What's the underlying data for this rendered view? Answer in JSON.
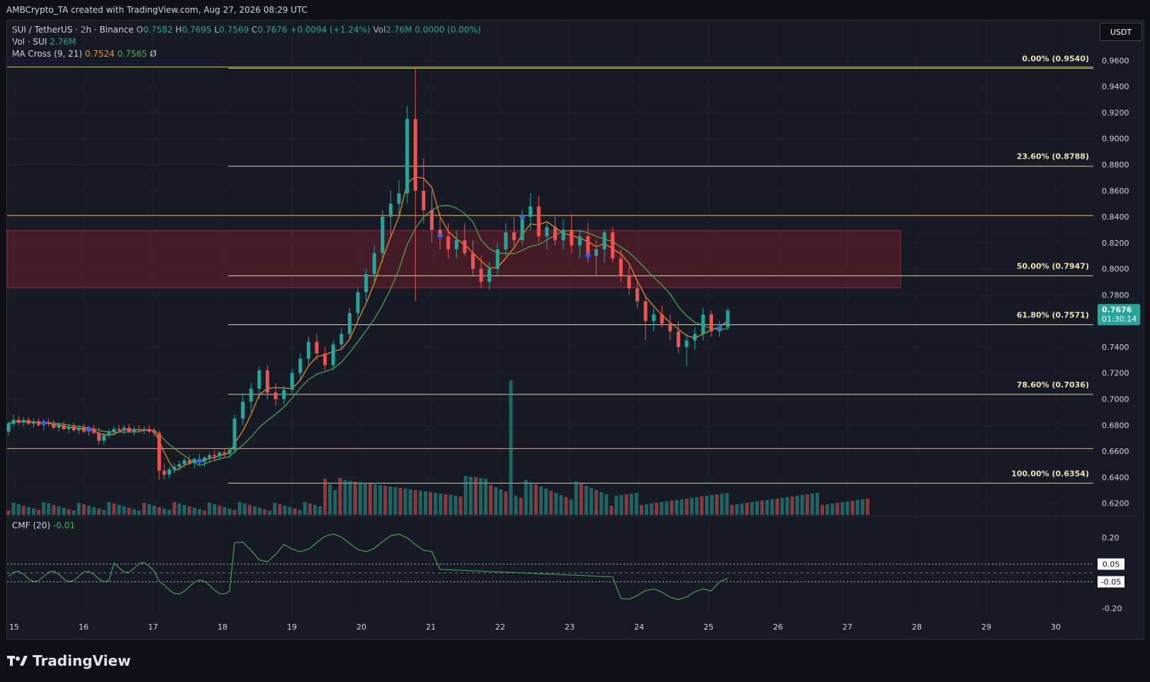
{
  "header": {
    "text": "AMBCrypto_TA created with TradingView.com, Aug 27, 2026 08:29 UTC"
  },
  "legend": {
    "symbol": "SUI / TetherUS · 2h · Binance",
    "o": "0.7582",
    "h": "0.7695",
    "l": "0.7569",
    "c": "0.7676",
    "change": "+0.0094 (+1.24%)",
    "vol_label": "Vol",
    "vol_value": "2.76M",
    "extra": "0.0000 (0.00%)",
    "vol_series": "Vol · SUI",
    "vol_series_value": "2.76M",
    "ma_label": "MA Cross (9, 21)",
    "ma_fast": "0.7524",
    "ma_slow": "0.7565",
    "ma_symbol": "Ø"
  },
  "cmf_legend": {
    "label": "CMF (20)",
    "value": "-0.01"
  },
  "currency_button": "USDT",
  "price_tag": {
    "price": "0.7676",
    "timer": "01:30:14"
  },
  "footer": {
    "brand": "TradingView"
  },
  "colors": {
    "up": "#26a69a",
    "down": "#ef5350",
    "ma_fast": "#f7931a",
    "ma_slow": "#4caf50",
    "fib": "#d4cfa8",
    "level": "#f0b24a",
    "zone": "#6b1f2a",
    "cmf": "#4caf50"
  },
  "chart_data": {
    "type": "candlestick",
    "price_axis": {
      "min": 0.61,
      "max": 0.97,
      "ticks": [
        "0.9600",
        "0.9400",
        "0.9200",
        "0.9000",
        "0.8800",
        "0.8600",
        "0.8400",
        "0.8200",
        "0.8000",
        "0.7800",
        "0.7400",
        "0.7200",
        "0.7000",
        "0.6800",
        "0.6600",
        "0.6400",
        "0.6200"
      ]
    },
    "time_axis": {
      "labels": [
        "15",
        "16",
        "17",
        "18",
        "19",
        "20",
        "21",
        "22",
        "23",
        "24",
        "25",
        "26",
        "27",
        "28",
        "29",
        "30"
      ],
      "day_positions": [
        15,
        16,
        17,
        18,
        19,
        20,
        21,
        22,
        23,
        24,
        25,
        26,
        27,
        28,
        29,
        30
      ]
    },
    "fib_levels": [
      {
        "label": "0.00% (0.9540)",
        "price": 0.954
      },
      {
        "label": "23.60% (0.8788)",
        "price": 0.8788
      },
      {
        "label": "50.00% (0.7947)",
        "price": 0.7947
      },
      {
        "label": "61.80% (0.7571)",
        "price": 0.7571
      },
      {
        "label": "78.60% (0.7036)",
        "price": 0.7036
      },
      {
        "label": "100.00% (0.6354)",
        "price": 0.6354
      }
    ],
    "horizontal_levels": [
      0.955,
      0.841,
      0.662
    ],
    "zone": {
      "from": 0.7855,
      "to": 0.8295
    },
    "ma_cross_markers_count": 7,
    "candles": [
      [
        0.675,
        0.683,
        0.672,
        0.681
      ],
      [
        0.681,
        0.688,
        0.679,
        0.684
      ],
      [
        0.684,
        0.687,
        0.68,
        0.682
      ],
      [
        0.682,
        0.686,
        0.679,
        0.684
      ],
      [
        0.684,
        0.686,
        0.68,
        0.681
      ],
      [
        0.681,
        0.685,
        0.678,
        0.683
      ],
      [
        0.683,
        0.685,
        0.679,
        0.68
      ],
      [
        0.68,
        0.683,
        0.676,
        0.682
      ],
      [
        0.682,
        0.685,
        0.679,
        0.681
      ],
      [
        0.681,
        0.684,
        0.677,
        0.678
      ],
      [
        0.678,
        0.682,
        0.675,
        0.68
      ],
      [
        0.68,
        0.683,
        0.676,
        0.677
      ],
      [
        0.677,
        0.681,
        0.674,
        0.679
      ],
      [
        0.679,
        0.682,
        0.675,
        0.676
      ],
      [
        0.676,
        0.68,
        0.673,
        0.678
      ],
      [
        0.678,
        0.681,
        0.674,
        0.675
      ],
      [
        0.675,
        0.679,
        0.672,
        0.677
      ],
      [
        0.677,
        0.68,
        0.673,
        0.674
      ],
      [
        0.674,
        0.678,
        0.665,
        0.668
      ],
      [
        0.668,
        0.674,
        0.665,
        0.672
      ],
      [
        0.672,
        0.677,
        0.67,
        0.675
      ],
      [
        0.675,
        0.679,
        0.672,
        0.677
      ],
      [
        0.677,
        0.68,
        0.674,
        0.676
      ],
      [
        0.676,
        0.68,
        0.673,
        0.678
      ],
      [
        0.678,
        0.681,
        0.674,
        0.675
      ],
      [
        0.675,
        0.679,
        0.672,
        0.677
      ],
      [
        0.677,
        0.68,
        0.674,
        0.676
      ],
      [
        0.676,
        0.679,
        0.673,
        0.677
      ],
      [
        0.677,
        0.68,
        0.674,
        0.675
      ],
      [
        0.675,
        0.678,
        0.671,
        0.674
      ],
      [
        0.674,
        0.676,
        0.638,
        0.645
      ],
      [
        0.645,
        0.65,
        0.638,
        0.642
      ],
      [
        0.642,
        0.648,
        0.639,
        0.646
      ],
      [
        0.646,
        0.651,
        0.643,
        0.648
      ],
      [
        0.648,
        0.653,
        0.645,
        0.65
      ],
      [
        0.65,
        0.655,
        0.647,
        0.653
      ],
      [
        0.653,
        0.657,
        0.649,
        0.651
      ],
      [
        0.651,
        0.655,
        0.647,
        0.654
      ],
      [
        0.654,
        0.658,
        0.65,
        0.652
      ],
      [
        0.652,
        0.656,
        0.648,
        0.655
      ],
      [
        0.655,
        0.659,
        0.651,
        0.657
      ],
      [
        0.657,
        0.661,
        0.653,
        0.656
      ],
      [
        0.656,
        0.66,
        0.653,
        0.659
      ],
      [
        0.659,
        0.662,
        0.655,
        0.658
      ],
      [
        0.658,
        0.663,
        0.655,
        0.661
      ],
      [
        0.661,
        0.688,
        0.658,
        0.685
      ],
      [
        0.685,
        0.703,
        0.68,
        0.698
      ],
      [
        0.698,
        0.713,
        0.69,
        0.708
      ],
      [
        0.708,
        0.725,
        0.7,
        0.722
      ],
      [
        0.722,
        0.726,
        0.7,
        0.705
      ],
      [
        0.705,
        0.712,
        0.695,
        0.7
      ],
      [
        0.7,
        0.71,
        0.696,
        0.707
      ],
      [
        0.707,
        0.723,
        0.704,
        0.72
      ],
      [
        0.72,
        0.735,
        0.715,
        0.731
      ],
      [
        0.731,
        0.748,
        0.726,
        0.744
      ],
      [
        0.744,
        0.75,
        0.73,
        0.735
      ],
      [
        0.735,
        0.74,
        0.722,
        0.726
      ],
      [
        0.726,
        0.745,
        0.722,
        0.742
      ],
      [
        0.742,
        0.755,
        0.738,
        0.75
      ],
      [
        0.75,
        0.77,
        0.745,
        0.766
      ],
      [
        0.766,
        0.786,
        0.76,
        0.782
      ],
      [
        0.782,
        0.8,
        0.775,
        0.796
      ],
      [
        0.796,
        0.818,
        0.79,
        0.812
      ],
      [
        0.812,
        0.845,
        0.805,
        0.84
      ],
      [
        0.84,
        0.86,
        0.826,
        0.85
      ],
      [
        0.85,
        0.868,
        0.84,
        0.858
      ],
      [
        0.858,
        0.925,
        0.85,
        0.915
      ],
      [
        0.915,
        0.954,
        0.775,
        0.86
      ],
      [
        0.86,
        0.885,
        0.835,
        0.845
      ],
      [
        0.845,
        0.86,
        0.82,
        0.83
      ],
      [
        0.83,
        0.843,
        0.815,
        0.825
      ],
      [
        0.825,
        0.835,
        0.808,
        0.815
      ],
      [
        0.815,
        0.83,
        0.808,
        0.822
      ],
      [
        0.822,
        0.835,
        0.81,
        0.812
      ],
      [
        0.812,
        0.822,
        0.795,
        0.8
      ],
      [
        0.8,
        0.81,
        0.785,
        0.79
      ],
      [
        0.79,
        0.805,
        0.784,
        0.8
      ],
      [
        0.8,
        0.82,
        0.795,
        0.815
      ],
      [
        0.815,
        0.835,
        0.81,
        0.828
      ],
      [
        0.828,
        0.84,
        0.818,
        0.822
      ],
      [
        0.822,
        0.845,
        0.818,
        0.84
      ],
      [
        0.84,
        0.858,
        0.83,
        0.848
      ],
      [
        0.848,
        0.856,
        0.82,
        0.825
      ],
      [
        0.825,
        0.835,
        0.815,
        0.832
      ],
      [
        0.832,
        0.84,
        0.818,
        0.822
      ],
      [
        0.822,
        0.838,
        0.815,
        0.83
      ],
      [
        0.83,
        0.842,
        0.812,
        0.818
      ],
      [
        0.818,
        0.83,
        0.808,
        0.825
      ],
      [
        0.825,
        0.835,
        0.805,
        0.81
      ],
      [
        0.81,
        0.822,
        0.795,
        0.815
      ],
      [
        0.815,
        0.83,
        0.805,
        0.828
      ],
      [
        0.828,
        0.832,
        0.805,
        0.808
      ],
      [
        0.808,
        0.815,
        0.79,
        0.795
      ],
      [
        0.795,
        0.802,
        0.78,
        0.785
      ],
      [
        0.785,
        0.792,
        0.77,
        0.775
      ],
      [
        0.775,
        0.78,
        0.745,
        0.76
      ],
      [
        0.76,
        0.77,
        0.752,
        0.765
      ],
      [
        0.765,
        0.772,
        0.755,
        0.758
      ],
      [
        0.758,
        0.765,
        0.745,
        0.752
      ],
      [
        0.752,
        0.76,
        0.735,
        0.74
      ],
      [
        0.74,
        0.75,
        0.725,
        0.745
      ],
      [
        0.745,
        0.755,
        0.738,
        0.75
      ],
      [
        0.75,
        0.77,
        0.745,
        0.765
      ],
      [
        0.765,
        0.768,
        0.748,
        0.752
      ],
      [
        0.752,
        0.76,
        0.748,
        0.755
      ],
      [
        0.755,
        0.77,
        0.753,
        0.768
      ]
    ],
    "volume_max": 190,
    "cmf": {
      "range": [
        -0.25,
        0.25
      ],
      "ticks": [
        "0.20",
        "-0.20"
      ],
      "bands": [
        "0.05",
        "-0.05"
      ]
    }
  }
}
